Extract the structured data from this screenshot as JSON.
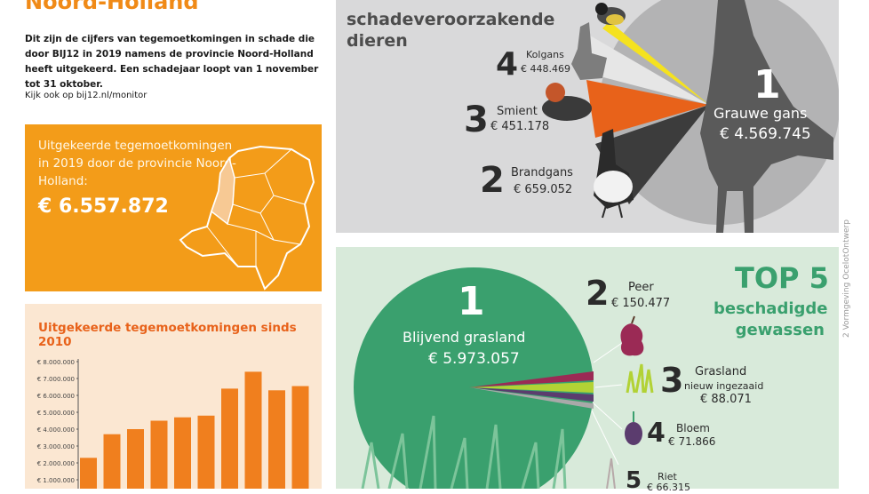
{
  "province_title": "Noord-Holland",
  "intro": "Dit zijn de cijfers van tegemoetkomingen in schade die door BIJ12 in 2019 namens de provincie Noord-Holland heeft uitgekeerd. Een schadejaar loopt van 1 november tot 31 oktober.",
  "monitor_link": "Kijk ook op bij12.nl/monitor",
  "payout_box": {
    "label": "Uitgekeerde tegemoetkomingen in 2019 door de provincie Noord-Holland:",
    "value": "€ 6.557.872"
  },
  "chart_title": "Uitgekeerde tegemoetkomingen sinds 2010",
  "chart_data": {
    "type": "bar",
    "title": "Uitgekeerde tegemoetkomingen sinds 2010",
    "tick_labels": [
      "€ 8.000.000",
      "€ 7.000.000",
      "€ 6.000.000",
      "€ 5.000.000",
      "€ 4.000.000",
      "€ 3.000.000",
      "€ 2.000.000",
      "€ 1.000.000"
    ],
    "ylim": [
      0,
      8000000
    ],
    "values": [
      2300000,
      3700000,
      4000000,
      4500000,
      4700000,
      4800000,
      6400000,
      7400000,
      6300000,
      6550000
    ],
    "color": "#f07f1e"
  },
  "animals": {
    "subtitle_line1": "schadeveroorzakende",
    "subtitle_line2": "dieren",
    "items": [
      {
        "rank": "1",
        "name": "Grauwe gans",
        "amount": "€ 4.569.745"
      },
      {
        "rank": "2",
        "name": "Brandgans",
        "amount": "€ 659.052"
      },
      {
        "rank": "3",
        "name": "Smient",
        "amount": "€ 451.178"
      },
      {
        "rank": "4",
        "name": "Kolgans",
        "amount": "€ 448.469"
      }
    ],
    "colors": {
      "pie": "#b3b3b4",
      "smient": "#e8621a",
      "brandgans": "#3c3c3c",
      "kolgans": "#d9d9da",
      "top": "#f5e21f"
    }
  },
  "crops": {
    "title": "TOP 5",
    "subtitle_line1": "beschadigde",
    "subtitle_line2": "gewassen",
    "items": [
      {
        "rank": "1",
        "name": "Blijvend grasland",
        "amount": "€ 5.973.057"
      },
      {
        "rank": "2",
        "name": "Peer",
        "amount": "€ 150.477"
      },
      {
        "rank": "3",
        "name": "Grasland",
        "sub": "nieuw ingezaaid",
        "amount": "€ 88.071"
      },
      {
        "rank": "4",
        "name": "Bloem",
        "amount": "€ 71.866"
      },
      {
        "rank": "5",
        "name": "Riet",
        "amount": "€ 66.315"
      }
    ],
    "colors": {
      "pie": "#3aa06e",
      "accent": "#3aa06e"
    }
  },
  "credit": "2  Vormgeving OcelotOntwerp"
}
